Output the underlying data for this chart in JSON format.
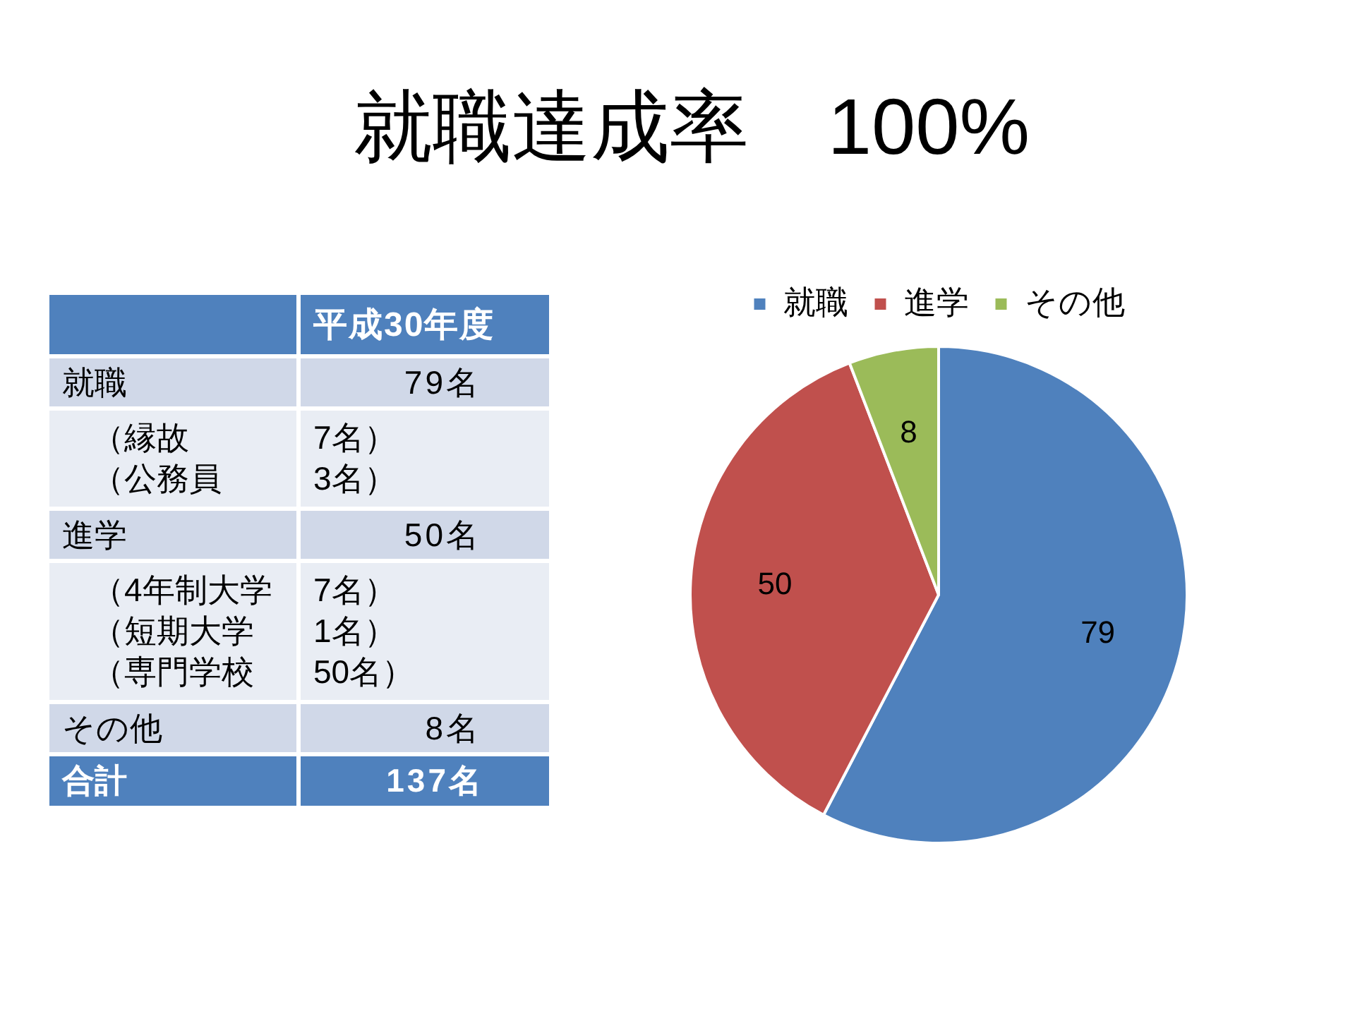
{
  "chart_data": [
    {
      "type": "other",
      "title": "平成30年度",
      "categories": [
        "就職",
        "（縁故",
        "（公務員",
        "進学",
        "（4年制大学",
        "（短期大学",
        "（専門学校",
        "その他",
        "合計"
      ],
      "value_labels": [
        "79名",
        "7名）",
        "3名）",
        "50名",
        "7名）",
        "1名）",
        "50名）",
        "8名",
        "137名"
      ]
    },
    {
      "type": "pie",
      "title": "就職達成率　100%",
      "categories": [
        "就職",
        "進学",
        "その他"
      ],
      "values": [
        79,
        50,
        8
      ],
      "colors": [
        "#4f81bd",
        "#c0504d",
        "#9bbb59"
      ],
      "legend": "top",
      "data_labels": true
    }
  ]
}
